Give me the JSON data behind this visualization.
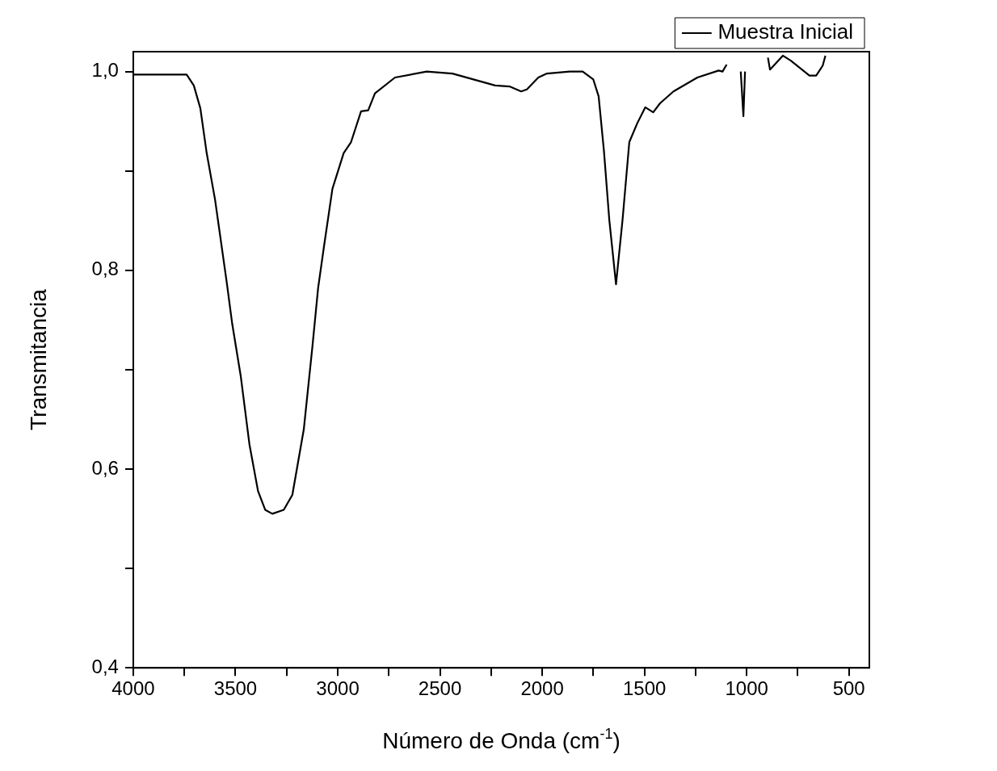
{
  "chart_data": {
    "type": "line",
    "xlabel": "Número de Onda (cm$^{-1}$)",
    "ylabel": "Transmitancia",
    "legend": "top right",
    "marker": "none",
    "line_style": "solid",
    "xlim": [
      4000,
      400
    ],
    "ylim": [
      0.4,
      1.02
    ],
    "xticks": [
      4000,
      {
        "value": 3750,
        "label": null
      },
      3500,
      {
        "value": 3250,
        "label": null
      },
      3000,
      {
        "value": 2750,
        "label": null
      },
      2500,
      {
        "value": 2250,
        "label": null
      },
      2000,
      {
        "value": 1750,
        "label": null
      },
      1500,
      {
        "value": 1250,
        "label": null
      },
      1000,
      {
        "value": 750,
        "label": null
      },
      500
    ],
    "yticks": [
      {
        "value": 0.4,
        "label": "0,4"
      },
      {
        "value": 0.5,
        "label": null
      },
      {
        "value": 0.6,
        "label": "0,6"
      },
      {
        "value": 0.7,
        "label": null
      },
      {
        "value": 0.8,
        "label": "0,8"
      },
      {
        "value": 0.9,
        "label": null
      },
      {
        "value": 1.0,
        "label": "1,0"
      }
    ],
    "series": [
      {
        "name": "Muestra Inicial",
        "color": "#000000",
        "x": [
          3996,
          3739,
          3704,
          3672,
          3641,
          3600,
          3543,
          3516,
          3474,
          3432,
          3390,
          3355,
          3320,
          3264,
          3222,
          3166,
          3124,
          3096,
          3068,
          3026,
          2971,
          2935,
          2886,
          2851,
          2818,
          2720,
          2565,
          2439,
          2230,
          2160,
          2103,
          2075,
          2019,
          1977,
          1866,
          1802,
          1750,
          1724,
          1698,
          1672,
          1639,
          1607,
          1574,
          1535,
          1496,
          1457,
          1424,
          1358,
          1241,
          1137,
          1118,
          1098,
          1060,
          1029,
          1016,
          1008,
          950,
          896,
          886,
          823,
          784,
          693,
          660,
          628,
          615
        ],
        "values": [
          0.997,
          0.997,
          0.986,
          0.963,
          0.918,
          0.871,
          0.788,
          0.746,
          0.693,
          0.625,
          0.578,
          0.559,
          0.555,
          0.559,
          0.574,
          0.64,
          0.723,
          0.782,
          0.823,
          0.882,
          0.918,
          0.929,
          0.96,
          0.961,
          0.978,
          0.994,
          1.0,
          0.998,
          0.986,
          0.985,
          0.98,
          0.982,
          0.994,
          0.998,
          1.0,
          1.0,
          0.992,
          0.975,
          0.92,
          0.851,
          0.786,
          0.851,
          0.929,
          0.948,
          0.964,
          0.959,
          0.968,
          0.98,
          0.994,
          1.001,
          1.0,
          1.007,
          null,
          1.0,
          0.955,
          1.0,
          null,
          1.014,
          1.002,
          1.016,
          1.011,
          0.996,
          0.996,
          1.006,
          1.016
        ]
      }
    ]
  }
}
